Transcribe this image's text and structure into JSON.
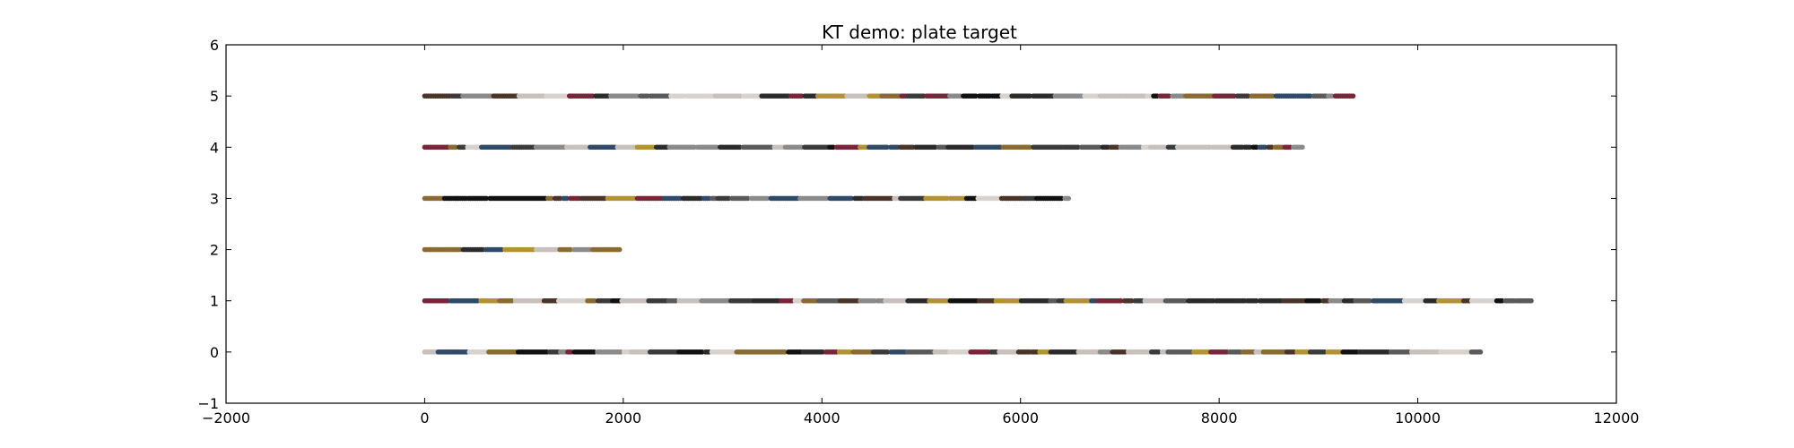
{
  "chart_data": {
    "type": "scatter",
    "title": "KT demo: plate target",
    "xlabel": "",
    "ylabel": "",
    "xlim": [
      -2000,
      12000
    ],
    "ylim": [
      -1,
      6
    ],
    "xticks": [
      -2000,
      0,
      2000,
      4000,
      6000,
      8000,
      10000,
      12000
    ],
    "yticks": [
      -1,
      0,
      1,
      2,
      3,
      4,
      5,
      6
    ],
    "xtick_labels": [
      "−2000",
      "0",
      "2000",
      "4000",
      "6000",
      "8000",
      "10000",
      "12000"
    ],
    "ytick_labels": [
      "−1",
      "0",
      "1",
      "2",
      "3",
      "4",
      "5",
      "6"
    ],
    "grid": false,
    "legend": "none",
    "series": [
      {
        "y": 0,
        "x_start": 0,
        "x_end": 10650
      },
      {
        "y": 1,
        "x_start": 0,
        "x_end": 11150
      },
      {
        "y": 2,
        "x_start": 0,
        "x_end": 1980
      },
      {
        "y": 3,
        "x_start": 0,
        "x_end": 6500
      },
      {
        "y": 4,
        "x_start": 0,
        "x_end": 8850
      },
      {
        "y": 5,
        "x_start": 0,
        "x_end": 9350
      }
    ],
    "point_colors": [
      "#111111",
      "#2b2b2b",
      "#3a3a3a",
      "#5a5a5a",
      "#7a2438",
      "#4a3428",
      "#2f4a68",
      "#c8c0bc",
      "#d8d2cf",
      "#b39230",
      "#8a6a30",
      "#8a8a8a"
    ]
  }
}
